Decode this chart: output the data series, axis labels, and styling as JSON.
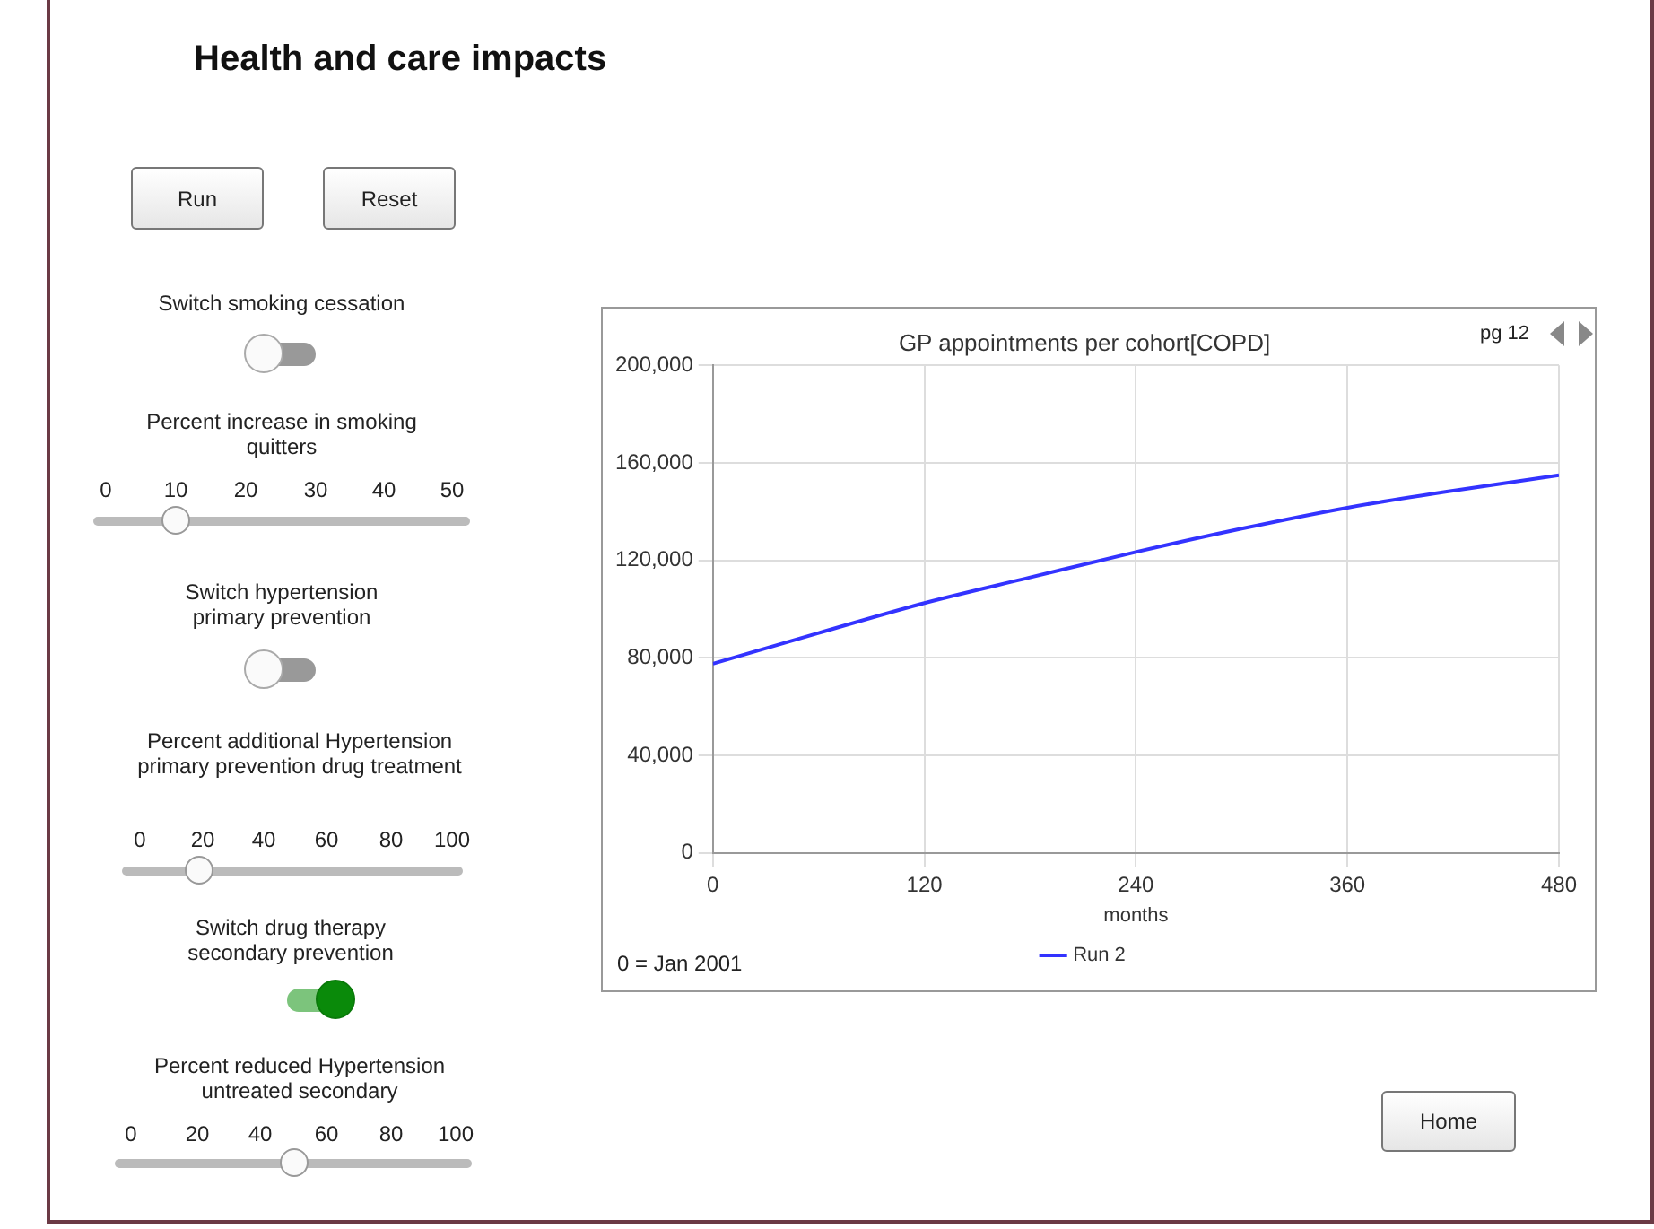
{
  "chart_data": {
    "type": "line",
    "title": "GP appointments per cohort[COPD]",
    "xlabel": "months",
    "x": [
      0,
      60,
      120,
      180,
      240,
      300,
      360,
      420,
      480
    ],
    "series": [
      {
        "name": "Run 2",
        "color": "#3333ff",
        "values": [
          77600,
          90200,
          102500,
          113000,
          123400,
          133000,
          141600,
          148600,
          154900
        ]
      }
    ],
    "xlim": [
      0,
      480
    ],
    "xticks": [
      0,
      120,
      240,
      360,
      480
    ],
    "ylim": [
      0,
      200000
    ],
    "yticks": [
      0,
      {
        "value": 40000,
        "label": "40,000"
      },
      {
        "value": 80000,
        "label": "80,000"
      },
      {
        "value": 120000,
        "label": "120,000"
      },
      {
        "value": 160000,
        "label": "160,000"
      },
      {
        "value": 200000,
        "label": "200,000"
      }
    ],
    "grid": true,
    "legend": "bottom",
    "marker": "none",
    "line_style": "solid",
    "annotations": [
      "Health and care impacts",
      "Run",
      "Reset",
      "Switch smoking cessation",
      "Percent increase in smoking quitters",
      "0",
      "10",
      "20",
      "30",
      "40",
      "50",
      "Switch hypertension primary prevention",
      "Percent additional Hypertension primary prevention drug treatment",
      "0",
      "20",
      "40",
      "60",
      "80",
      "100",
      "Switch drug therapy secondary prevention",
      "Percent reduced Hypertension untreated secondary",
      "0",
      "20",
      "40",
      "60",
      "80",
      "100",
      "0 = Jan 2001",
      "pg 12",
      "Home"
    ]
  }
}
